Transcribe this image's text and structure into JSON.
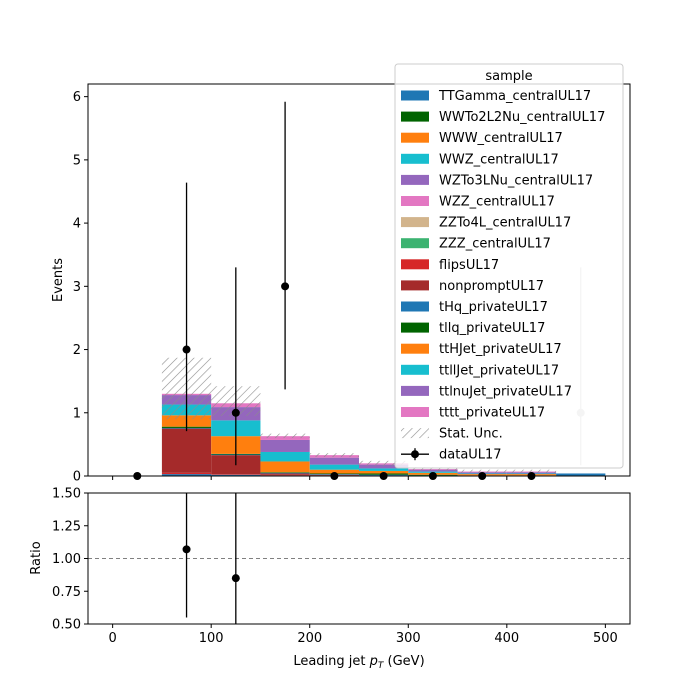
{
  "chart_data": [
    {
      "type": "bar",
      "stacked": true,
      "panel": "main",
      "xlabel": "Leading jet  p_T (GeV)",
      "xlabel_parts": [
        "Leading jet  ",
        "p",
        "T",
        " (GeV)"
      ],
      "ylabel": "Events",
      "xlim": [
        -25,
        525
      ],
      "ylim": [
        0,
        6.2
      ],
      "xticks": [
        0,
        100,
        200,
        300,
        400,
        500
      ],
      "yticks": [
        0,
        1,
        2,
        3,
        4,
        5,
        6
      ],
      "bin_edges": [
        0,
        50,
        100,
        150,
        200,
        250,
        300,
        350,
        400,
        450,
        500
      ],
      "series": [
        {
          "name": "TTGamma_centralUL17",
          "color": "#1f77b4",
          "values": [
            0,
            0.03,
            0.02,
            0.01,
            0.01,
            0.01,
            0.01,
            0.01,
            0.01,
            0.04
          ]
        },
        {
          "name": "WWTo2L2Nu_centralUL17",
          "color": "#006400",
          "values": [
            0,
            0,
            0,
            0,
            0,
            0,
            0,
            0,
            0,
            0
          ]
        },
        {
          "name": "WWW_centralUL17",
          "color": "#ff7f0e",
          "values": [
            0,
            0,
            0,
            0,
            0,
            0,
            0,
            0,
            0,
            0
          ]
        },
        {
          "name": "WWZ_centralUL17",
          "color": "#17becf",
          "values": [
            0,
            0,
            0,
            0,
            0,
            0,
            0,
            0,
            0,
            0
          ]
        },
        {
          "name": "WZTo3LNu_centralUL17",
          "color": "#9467bd",
          "values": [
            0,
            0,
            0,
            0,
            0,
            0,
            0,
            0,
            0,
            0
          ]
        },
        {
          "name": "WZZ_centralUL17",
          "color": "#e377c2",
          "values": [
            0,
            0,
            0,
            0,
            0,
            0,
            0,
            0,
            0,
            0
          ]
        },
        {
          "name": "ZZTo4L_centralUL17",
          "color": "#d2b48c",
          "values": [
            0,
            0,
            0,
            0,
            0,
            0,
            0,
            0,
            0,
            0
          ]
        },
        {
          "name": "ZZZ_centralUL17",
          "color": "#3cb371",
          "values": [
            0,
            0,
            0,
            0,
            0,
            0,
            0,
            0,
            0,
            0
          ]
        },
        {
          "name": "flipsUL17",
          "color": "#d62728",
          "values": [
            0,
            0.02,
            0.01,
            0.01,
            0,
            0,
            0,
            0,
            0,
            0
          ]
        },
        {
          "name": "nonpromptUL17",
          "color": "#a52a2a",
          "values": [
            0,
            0.7,
            0.3,
            0.02,
            0.01,
            0,
            0,
            0,
            0,
            0
          ]
        },
        {
          "name": "tHq_privateUL17",
          "color": "#1f77b4",
          "values": [
            0,
            0.01,
            0.01,
            0.01,
            0.01,
            0.01,
            0,
            0,
            0,
            0
          ]
        },
        {
          "name": "tllq_privateUL17",
          "color": "#006400",
          "values": [
            0,
            0.02,
            0.01,
            0.01,
            0.01,
            0.02,
            0.01,
            0,
            0,
            0
          ]
        },
        {
          "name": "ttHJet_privateUL17",
          "color": "#ff7f0e",
          "values": [
            0,
            0.18,
            0.28,
            0.17,
            0.06,
            0.04,
            0.03,
            0.02,
            0.02,
            0
          ]
        },
        {
          "name": "ttllJet_privateUL17",
          "color": "#17becf",
          "values": [
            0,
            0.17,
            0.25,
            0.15,
            0.08,
            0.04,
            0.02,
            0.01,
            0.01,
            0
          ]
        },
        {
          "name": "ttlnuJet_privateUL17",
          "color": "#9467bd",
          "values": [
            0,
            0.15,
            0.21,
            0.19,
            0.11,
            0.06,
            0.03,
            0.02,
            0.02,
            0
          ]
        },
        {
          "name": "tttt_privateUL17",
          "color": "#e377c2",
          "values": [
            0,
            0.02,
            0.06,
            0.06,
            0.04,
            0.02,
            0.01,
            0.01,
            0.01,
            0
          ]
        }
      ],
      "stat_unc": {
        "name": "Stat. Unc.",
        "low": [
          0,
          0.9,
          0.95,
          0.6,
          0.3,
          0.16,
          0.08,
          0.05,
          0.05,
          0
        ],
        "high": [
          0,
          1.87,
          1.42,
          0.67,
          0.36,
          0.24,
          0.14,
          0.1,
          0.1,
          0
        ]
      },
      "data": {
        "name": "dataUL17",
        "color": "#000000",
        "x": [
          25,
          75,
          125,
          175,
          225,
          275,
          325,
          375,
          425,
          475
        ],
        "y": [
          0,
          2,
          1,
          3,
          0,
          0,
          0,
          0,
          0,
          1
        ],
        "yerr_low": [
          0,
          1.29,
          0.83,
          1.63,
          0,
          0,
          0,
          0,
          0,
          0.83
        ],
        "yerr_high": [
          0,
          2.64,
          2.3,
          2.92,
          0,
          0,
          0,
          0,
          0,
          2.3
        ]
      },
      "legend": {
        "title": "sample",
        "position": "upper-right"
      }
    },
    {
      "type": "scatter",
      "panel": "ratio",
      "xlabel": "Leading jet  p_T (GeV)",
      "ylabel": "Ratio",
      "xlim": [
        -25,
        525
      ],
      "ylim": [
        0.5,
        1.5
      ],
      "xticks": [
        0,
        100,
        200,
        300,
        400,
        500
      ],
      "yticks": [
        "0.50",
        "0.75",
        "1.00",
        "1.25",
        "1.50"
      ],
      "reference_line": 1.0,
      "points": [
        {
          "x": 75,
          "y": 1.07,
          "err_low": 0.52,
          "err_high": 1.9
        },
        {
          "x": 125,
          "y": 0.85,
          "err_low": 0.75,
          "err_high": 1.9
        }
      ]
    }
  ]
}
